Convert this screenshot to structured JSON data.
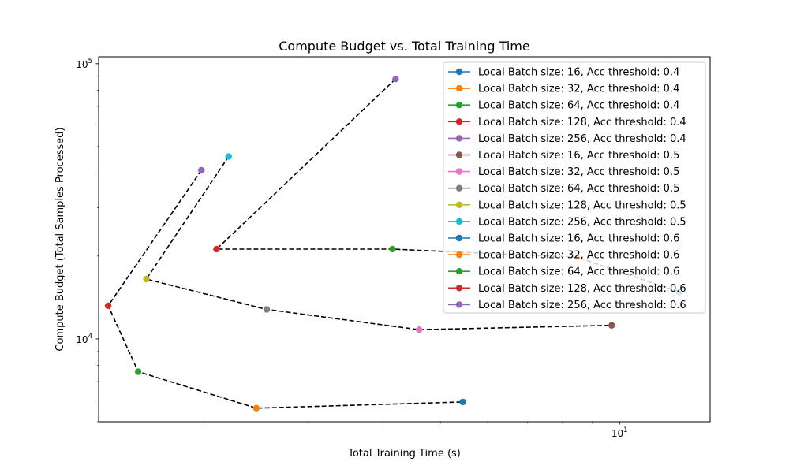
{
  "chart_data": {
    "type": "line",
    "title": "Compute Budget vs. Total Training Time",
    "xlabel": "Total Training Time (s)",
    "ylabel": "Compute Budget (Total Samples Processed)",
    "xscale": "log",
    "yscale": "log",
    "xlim": [
      1.33,
      14.2
    ],
    "ylim": [
      5000,
      106000
    ],
    "x_ticks": [
      {
        "value": 10,
        "base": "10",
        "exp": "1"
      }
    ],
    "y_ticks": [
      {
        "value": 10000,
        "base": "10",
        "exp": "4"
      },
      {
        "value": 100000,
        "base": "10",
        "exp": "5"
      }
    ],
    "grid": false,
    "legend_position": "top-right",
    "connector_style": {
      "color": "#000000",
      "dash": "dashed"
    },
    "series": [
      {
        "name": "Local Batch size: 16, Acc threshold: 0.4",
        "color": "#1f77b4",
        "x": 5.45,
        "y": 5900
      },
      {
        "name": "Local Batch size: 32, Acc threshold: 0.4",
        "color": "#ff7f0e",
        "x": 2.45,
        "y": 5600
      },
      {
        "name": "Local Batch size: 64, Acc threshold: 0.4",
        "color": "#2ca02c",
        "x": 1.55,
        "y": 7600
      },
      {
        "name": "Local Batch size: 128, Acc threshold: 0.4",
        "color": "#d62728",
        "x": 1.38,
        "y": 13200
      },
      {
        "name": "Local Batch size: 256, Acc threshold: 0.4",
        "color": "#9467bd",
        "x": 1.98,
        "y": 41000
      },
      {
        "name": "Local Batch size: 16, Acc threshold: 0.5",
        "color": "#8c564b",
        "x": 9.7,
        "y": 11200
      },
      {
        "name": "Local Batch size: 32, Acc threshold: 0.5",
        "color": "#e377c2",
        "x": 4.6,
        "y": 10800
      },
      {
        "name": "Local Batch size: 64, Acc threshold: 0.5",
        "color": "#7f7f7f",
        "x": 2.55,
        "y": 12800
      },
      {
        "name": "Local Batch size: 128, Acc threshold: 0.5",
        "color": "#bcbd22",
        "x": 1.6,
        "y": 16500
      },
      {
        "name": "Local Batch size: 256, Acc threshold: 0.5",
        "color": "#17becf",
        "x": 2.2,
        "y": 46000
      },
      {
        "name": "Local Batch size: 16, Acc threshold: 0.6",
        "color": "#1f77b4",
        "x": 12.6,
        "y": 14800
      },
      {
        "name": "Local Batch size: 32, Acc threshold: 0.6",
        "color": "#ff7f0e",
        "x": 8.5,
        "y": 19800
      },
      {
        "name": "Local Batch size: 64, Acc threshold: 0.6",
        "color": "#2ca02c",
        "x": 4.15,
        "y": 21200
      },
      {
        "name": "Local Batch size: 128, Acc threshold: 0.6",
        "color": "#d62728",
        "x": 2.1,
        "y": 21200
      },
      {
        "name": "Local Batch size: 256, Acc threshold: 0.6",
        "color": "#9467bd",
        "x": 4.2,
        "y": 88000
      }
    ],
    "connectors": [
      {
        "threshold": "0.4",
        "order": [
          4,
          3,
          2,
          1,
          0
        ]
      },
      {
        "threshold": "0.5",
        "order": [
          9,
          8,
          7,
          6,
          5
        ]
      },
      {
        "threshold": "0.6",
        "order": [
          14,
          13,
          12,
          11,
          10
        ]
      }
    ]
  }
}
